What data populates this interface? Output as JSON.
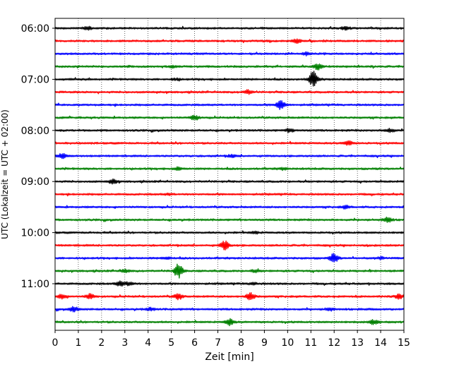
{
  "chart_data": {
    "type": "line",
    "title": "",
    "xlabel": "Zeit  [min]",
    "ylabel": "UTC (Lokalzeit = UTC + 02:00)",
    "xlim": [
      0,
      15
    ],
    "x_ticks": [
      0,
      1,
      2,
      3,
      4,
      5,
      6,
      7,
      8,
      9,
      10,
      11,
      12,
      13,
      14,
      15
    ],
    "x_tick_labels": [
      "0",
      "1",
      "2",
      "3",
      "4",
      "5",
      "6",
      "7",
      "8",
      "9",
      "10",
      "11",
      "12",
      "13",
      "14",
      "15"
    ],
    "y_tick_labels": [
      "06:00",
      "07:00",
      "08:00",
      "09:00",
      "10:00",
      "11:00"
    ],
    "y_tick_trace_index": [
      0,
      4,
      8,
      12,
      16,
      20
    ],
    "grid": "vertical dotted lines at each minute",
    "trace_interval_min": 15,
    "traces": [
      {
        "start": "06:00",
        "color": "#000000",
        "events": [
          [
            1.4,
            0.6
          ],
          [
            12.5,
            0.7
          ]
        ]
      },
      {
        "start": "06:15",
        "color": "#ff0000",
        "events": [
          [
            10.4,
            0.8
          ]
        ]
      },
      {
        "start": "06:30",
        "color": "#0000ff",
        "events": [
          [
            10.8,
            0.6
          ]
        ]
      },
      {
        "start": "06:45",
        "color": "#008000",
        "events": [
          [
            11.3,
            1.2
          ],
          [
            5.1,
            0.4
          ]
        ]
      },
      {
        "start": "07:00",
        "color": "#000000",
        "events": [
          [
            11.1,
            3.5
          ],
          [
            5.2,
            0.4
          ]
        ]
      },
      {
        "start": "07:15",
        "color": "#ff0000",
        "events": [
          [
            8.3,
            0.8
          ]
        ]
      },
      {
        "start": "07:30",
        "color": "#0000ff",
        "events": [
          [
            9.7,
            2.0
          ]
        ]
      },
      {
        "start": "07:45",
        "color": "#008000",
        "events": [
          [
            6.0,
            1.0
          ]
        ]
      },
      {
        "start": "08:00",
        "color": "#000000",
        "events": [
          [
            10.1,
            0.7
          ],
          [
            14.4,
            0.8
          ]
        ]
      },
      {
        "start": "08:15",
        "color": "#ff0000",
        "events": [
          [
            12.6,
            1.0
          ]
        ]
      },
      {
        "start": "08:30",
        "color": "#0000ff",
        "events": [
          [
            0.3,
            1.0
          ],
          [
            7.6,
            0.5
          ]
        ]
      },
      {
        "start": "08:45",
        "color": "#008000",
        "events": [
          [
            5.3,
            0.5
          ],
          [
            9.8,
            0.4
          ]
        ]
      },
      {
        "start": "09:00",
        "color": "#000000",
        "events": [
          [
            2.5,
            0.9
          ]
        ]
      },
      {
        "start": "09:15",
        "color": "#ff0000",
        "events": [
          [
            4.9,
            0.3
          ]
        ]
      },
      {
        "start": "09:30",
        "color": "#0000ff",
        "events": [
          [
            12.5,
            0.6
          ]
        ]
      },
      {
        "start": "09:45",
        "color": "#008000",
        "events": [
          [
            14.3,
            1.0
          ]
        ]
      },
      {
        "start": "10:00",
        "color": "#000000",
        "events": [
          [
            8.6,
            0.4
          ]
        ]
      },
      {
        "start": "10:15",
        "color": "#ff0000",
        "events": [
          [
            7.3,
            2.0
          ]
        ]
      },
      {
        "start": "10:30",
        "color": "#0000ff",
        "events": [
          [
            12.0,
            2.0
          ],
          [
            4.8,
            0.5
          ],
          [
            14.0,
            0.5
          ]
        ]
      },
      {
        "start": "10:45",
        "color": "#008000",
        "events": [
          [
            5.3,
            3.0
          ],
          [
            3.0,
            0.6
          ],
          [
            8.6,
            0.5
          ]
        ]
      },
      {
        "start": "11:00",
        "color": "#000000",
        "events": [
          [
            2.8,
            1.0
          ],
          [
            3.2,
            0.8
          ],
          [
            8.5,
            0.5
          ]
        ]
      },
      {
        "start": "11:15",
        "color": "#ff0000",
        "events": [
          [
            8.4,
            1.6
          ],
          [
            5.3,
            1.2
          ],
          [
            1.5,
            1.0
          ],
          [
            0.3,
            0.9
          ],
          [
            14.8,
            0.9
          ]
        ]
      },
      {
        "start": "11:30",
        "color": "#0000ff",
        "events": [
          [
            0.8,
            1.0
          ],
          [
            4.1,
            0.6
          ],
          [
            11.8,
            0.5
          ]
        ]
      },
      {
        "start": "11:45",
        "color": "#008000",
        "events": [
          [
            7.5,
            1.3
          ],
          [
            13.7,
            1.0
          ]
        ]
      }
    ]
  }
}
